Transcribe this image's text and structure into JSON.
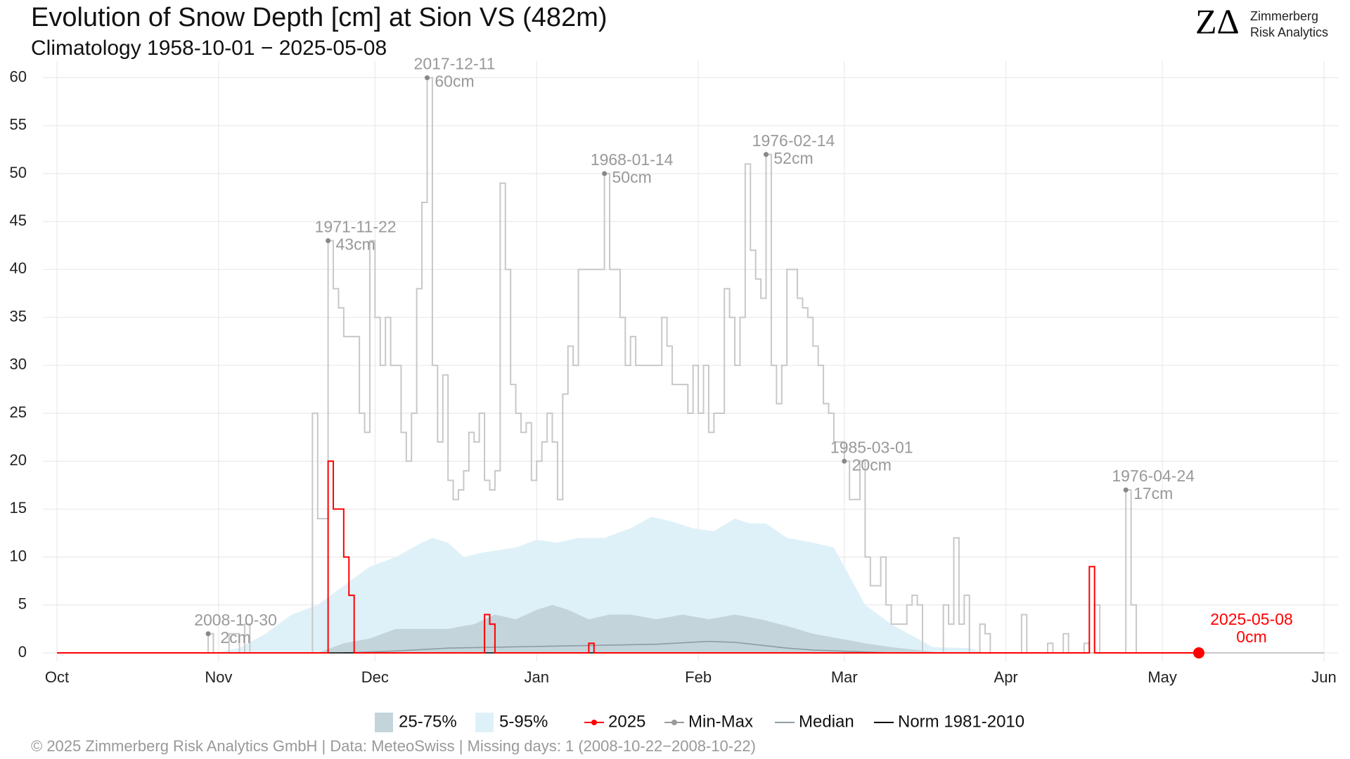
{
  "chart_data": {
    "type": "line",
    "title": "Evolution of Snow Depth [cm] at Sion  VS (482m)",
    "subtitle": "Climatology 1958-10-01 − 2025-05-08",
    "xlim": [
      0,
      243
    ],
    "xticks": [
      {
        "value": 0,
        "label": "Oct"
      },
      {
        "value": 31,
        "label": "Nov"
      },
      {
        "value": 61,
        "label": "Dec"
      },
      {
        "value": 92,
        "label": "Jan"
      },
      {
        "value": 123,
        "label": "Feb"
      },
      {
        "value": 151,
        "label": "Mar"
      },
      {
        "value": 182,
        "label": "Apr"
      },
      {
        "value": 212,
        "label": "May"
      },
      {
        "value": 243,
        "label": "Jun"
      }
    ],
    "ylim": [
      0,
      61
    ],
    "yticks": [
      0,
      5,
      10,
      15,
      20,
      25,
      30,
      35,
      40,
      45,
      50,
      55,
      60
    ],
    "grid": true,
    "series": [
      {
        "name": "25-75%",
        "type": "band",
        "color": "#c3d4da",
        "x": [
          50,
          55,
          60,
          65,
          70,
          75,
          80,
          84,
          88,
          92,
          95,
          98,
          102,
          106,
          110,
          115,
          120,
          125,
          130,
          135,
          140,
          145,
          150,
          155,
          160,
          165,
          170
        ],
        "low": [
          0,
          0,
          0,
          0,
          0,
          0,
          0,
          0,
          0,
          0,
          0,
          0,
          0,
          0,
          0,
          0,
          0,
          0,
          0,
          0,
          0,
          0,
          0,
          0,
          0,
          0,
          0
        ],
        "high": [
          0,
          1,
          1.5,
          2.5,
          2.5,
          2.5,
          3,
          4,
          3.5,
          4.5,
          5,
          4.5,
          3.5,
          4,
          4,
          3.5,
          4,
          3.5,
          4,
          3.5,
          2.8,
          2,
          1.5,
          1,
          0.6,
          0.3,
          0
        ]
      },
      {
        "name": "5-95%",
        "type": "band",
        "color": "#dff1f8",
        "x": [
          30,
          35,
          40,
          45,
          50,
          55,
          60,
          65,
          70,
          72,
          75,
          78,
          82,
          88,
          92,
          96,
          100,
          105,
          110,
          114,
          118,
          122,
          126,
          130,
          133,
          136,
          140,
          145,
          149,
          152,
          155,
          160,
          165,
          168,
          175,
          178
        ],
        "low": [
          0,
          0,
          0,
          0,
          0,
          0,
          0,
          0,
          0,
          0,
          0,
          0,
          0,
          0,
          0,
          0,
          0,
          0,
          0,
          0,
          0,
          0,
          0,
          0,
          0,
          0,
          0,
          0,
          0,
          0,
          0,
          0,
          0,
          0,
          0,
          0
        ],
        "high": [
          0,
          0.5,
          2,
          4,
          5,
          7,
          9,
          10,
          11.5,
          12,
          11.5,
          10,
          10.5,
          11,
          11.8,
          11.5,
          12,
          12,
          13,
          14.2,
          13.7,
          13,
          12.7,
          14,
          13.5,
          13.5,
          12,
          11.5,
          11,
          8,
          5,
          3,
          1.5,
          0.6,
          0.5,
          0
        ]
      },
      {
        "name": "2025",
        "type": "step",
        "color": "#ff0000",
        "x": [
          0,
          52,
          53,
          55,
          56,
          57,
          82,
          83,
          84,
          102,
          103,
          198,
          199,
          219
        ],
        "values": [
          0,
          20,
          15,
          10,
          6,
          0,
          4,
          3,
          0,
          1,
          0,
          9,
          0,
          0
        ]
      },
      {
        "name": "Min-Max",
        "type": "step",
        "color": "#c8c8c8",
        "x": [
          0,
          29,
          30,
          33,
          35,
          36,
          37,
          49,
          50,
          52,
          53,
          54,
          55,
          58,
          59,
          60,
          61,
          62,
          63,
          64,
          66,
          67,
          68,
          69,
          70,
          71,
          72,
          73,
          74,
          75,
          76,
          77,
          78,
          79,
          80,
          81,
          82,
          83,
          84,
          85,
          86,
          87,
          88,
          89,
          90,
          91,
          92,
          93,
          94,
          95,
          96,
          97,
          98,
          99,
          100,
          105,
          106,
          108,
          109,
          110,
          111,
          116,
          117,
          118,
          121,
          122,
          123,
          124,
          125,
          126,
          128,
          129,
          130,
          131,
          132,
          133,
          134,
          135,
          136,
          137,
          138,
          139,
          140,
          142,
          143,
          144,
          145,
          146,
          147,
          148,
          149,
          151,
          152,
          154,
          155,
          156,
          158,
          159,
          160,
          163,
          164,
          165,
          166,
          170,
          171,
          172,
          173,
          174,
          175,
          177,
          178,
          179,
          185,
          186,
          190,
          191,
          193,
          194,
          197,
          198,
          199,
          200,
          205,
          206,
          207,
          243
        ],
        "values": [
          0,
          2,
          0,
          2,
          0,
          3,
          0,
          25,
          14,
          43,
          38,
          36,
          33,
          25,
          23,
          43,
          35,
          30,
          35,
          30,
          23,
          20,
          25,
          38,
          47,
          60,
          30,
          22,
          29,
          18,
          16,
          17,
          19,
          23,
          22,
          25,
          18,
          17,
          19,
          49,
          40,
          28,
          25,
          23,
          24,
          18,
          20,
          22,
          25,
          22,
          16,
          27,
          32,
          30,
          40,
          50,
          40,
          35,
          30,
          33,
          30,
          35,
          32,
          28,
          25,
          30,
          25,
          30,
          23,
          25,
          38,
          35,
          30,
          35,
          51,
          42,
          39,
          37,
          52,
          30,
          26,
          30,
          40,
          37,
          36,
          35,
          32,
          30,
          26,
          25,
          22,
          20,
          16,
          20,
          10,
          7,
          10,
          5,
          3,
          5,
          6,
          5,
          0,
          5,
          3,
          12,
          3,
          6,
          0,
          3,
          2,
          0,
          4,
          0,
          1,
          0,
          2,
          0,
          1,
          0,
          5,
          0,
          17,
          5,
          0,
          0
        ]
      },
      {
        "name": "Median",
        "type": "line",
        "color": "#8d9ca2",
        "x": [
          55,
          65,
          75,
          85,
          95,
          105,
          115,
          125,
          130,
          135,
          140,
          145,
          150,
          160
        ],
        "values": [
          0,
          0.2,
          0.5,
          0.6,
          0.7,
          0.8,
          0.9,
          1.2,
          1.1,
          0.8,
          0.5,
          0.3,
          0.2,
          0
        ]
      },
      {
        "name": "Norm 1981-2010",
        "type": "line",
        "color": "#000000",
        "x": [
          0,
          243
        ],
        "values": [
          0,
          0
        ]
      }
    ],
    "annotations": [
      {
        "x": 29,
        "value": 2,
        "date": "2008-10-30",
        "label": "2cm",
        "color": "#999999"
      },
      {
        "x": 52,
        "value": 43,
        "date": "1971-11-22",
        "label": "43cm",
        "color": "#999999"
      },
      {
        "x": 71,
        "value": 60,
        "date": "2017-12-11",
        "label": "60cm",
        "color": "#999999"
      },
      {
        "x": 105,
        "value": 50,
        "date": "1968-01-14",
        "label": "50cm",
        "color": "#999999"
      },
      {
        "x": 136,
        "value": 52,
        "date": "1976-02-14",
        "label": "52cm",
        "color": "#999999"
      },
      {
        "x": 151,
        "value": 20,
        "date": "1985-03-01",
        "label": "20cm",
        "color": "#999999"
      },
      {
        "x": 205,
        "value": 17,
        "date": "1976-04-24",
        "label": "17cm",
        "color": "#999999"
      },
      {
        "x": 219,
        "value": 0,
        "date": "2025-05-08",
        "label": "0cm",
        "color": "#ff0000"
      }
    ]
  },
  "logo": {
    "mark": "ZΔ",
    "line1": "Zimmerberg",
    "line2": "Risk Analytics"
  },
  "footer": "©  2025 Zimmerberg Risk Analytics GmbH | Data: MeteoSwiss | Missing days: 1 (2008-10-22−2008-10-22)"
}
